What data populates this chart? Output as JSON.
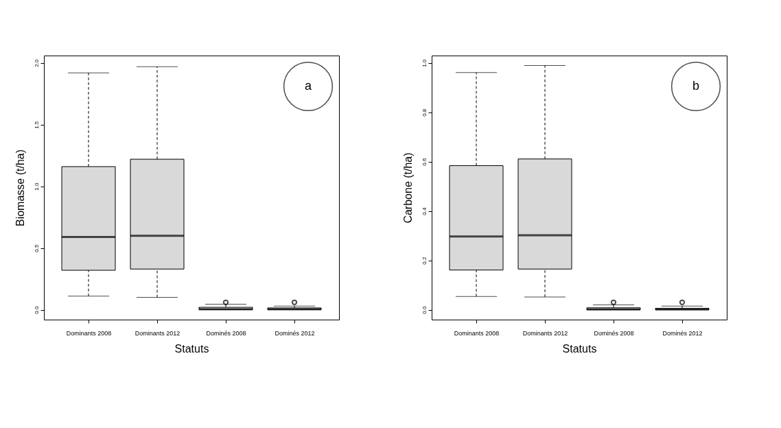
{
  "chart_data": [
    {
      "type": "box",
      "xlabel": "Statuts",
      "ylabel": "Biomasse (t/ha)",
      "categories": [
        "Dominants 2008",
        "Dominants 2012",
        "Dominés 2008",
        "Dominés 2012"
      ],
      "boxes": [
        {
          "low": 0.11,
          "q1": 0.32,
          "median": 0.59,
          "q3": 1.16,
          "high": 1.92
        },
        {
          "low": 0.1,
          "q1": 0.33,
          "median": 0.6,
          "q3": 1.22,
          "high": 1.97
        },
        {
          "low": 0.0,
          "q1": 0.0,
          "median": 0.005,
          "q3": 0.02,
          "high": 0.045,
          "outliers": [
            0.06
          ]
        },
        {
          "low": 0.0,
          "q1": 0.0,
          "median": 0.005,
          "q3": 0.015,
          "high": 0.03,
          "outliers": [
            0.06
          ]
        }
      ],
      "ylim": [
        -0.08,
        2.06
      ],
      "yticks": [
        {
          "value": 0,
          "label": "0.0"
        },
        0.5,
        {
          "value": 1,
          "label": "1.0"
        },
        1.5,
        {
          "value": 2,
          "label": "2.0"
        }
      ],
      "grid": false,
      "annotations": [
        "a"
      ]
    },
    {
      "type": "box",
      "xlabel": "Statuts",
      "ylabel": "Carbone (t/ha)",
      "categories": [
        "Dominants 2008",
        "Dominants 2012",
        "Dominés 2008",
        "Dominés 2012"
      ],
      "boxes": [
        {
          "low": 0.054,
          "q1": 0.161,
          "median": 0.297,
          "q3": 0.584,
          "high": 0.961
        },
        {
          "low": 0.052,
          "q1": 0.165,
          "median": 0.302,
          "q3": 0.611,
          "high": 0.99
        },
        {
          "low": 0.0,
          "q1": 0.0,
          "median": 0.002,
          "q3": 0.008,
          "high": 0.02,
          "outliers": [
            0.03
          ]
        },
        {
          "low": 0.0,
          "q1": 0.0,
          "median": 0.002,
          "q3": 0.006,
          "high": 0.015,
          "outliers": [
            0.03
          ]
        }
      ],
      "ylim": [
        -0.04,
        1.03
      ],
      "yticks": [
        {
          "value": 0,
          "label": "0.0"
        },
        0.2,
        0.4,
        0.6,
        0.8,
        {
          "value": 1,
          "label": "1.0"
        }
      ],
      "grid": false,
      "annotations": [
        "b"
      ]
    }
  ]
}
